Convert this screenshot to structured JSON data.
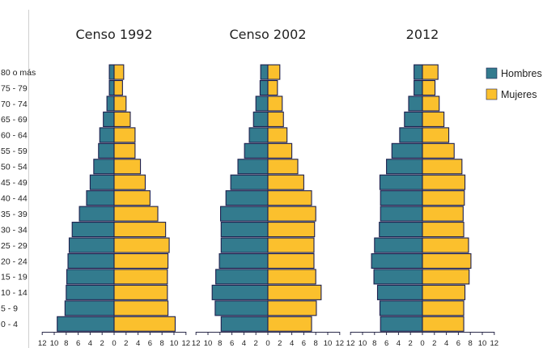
{
  "colors": {
    "hombres": "#337b8e",
    "mujeres": "#fbc02d",
    "outline": "#1d1f4e",
    "axis": "#2a2a4a",
    "leftline": "#d0d0d0"
  },
  "age_groups": [
    "0 - 4",
    "5 - 9",
    "10 - 14",
    "15 - 19",
    "20 - 24",
    "25 - 29",
    "30 - 34",
    "35 - 39",
    "40 - 44",
    "45 - 49",
    "50 - 54",
    "55 - 59",
    "60 - 64",
    "65 - 69",
    "70 - 74",
    "75 - 79",
    "80 o más"
  ],
  "legend": [
    {
      "label": "Hombres",
      "color": "#337b8e"
    },
    {
      "label": "Mujeres",
      "color": "#fbc02d"
    }
  ],
  "chart_data": [
    {
      "type": "bar",
      "title": "Censo 1992",
      "categories": [
        "0 - 4",
        "5 - 9",
        "10 - 14",
        "15 - 19",
        "20 - 24",
        "25 - 29",
        "30 - 34",
        "35 - 39",
        "40 - 44",
        "45 - 49",
        "50 - 54",
        "55 - 59",
        "60 - 64",
        "65 - 69",
        "70 - 74",
        "75 - 79",
        "80 o más"
      ],
      "series": [
        {
          "name": "Hombres",
          "values": [
            9.5,
            8.2,
            8.0,
            7.9,
            7.7,
            7.5,
            7.0,
            5.8,
            4.6,
            4.0,
            3.4,
            2.6,
            2.4,
            1.8,
            1.2,
            0.8,
            0.8
          ]
        },
        {
          "name": "Mujeres",
          "values": [
            10.2,
            9.0,
            8.9,
            8.9,
            9.0,
            9.2,
            8.6,
            7.3,
            6.0,
            5.2,
            4.4,
            3.5,
            3.5,
            2.7,
            2.0,
            1.4,
            1.6
          ]
        }
      ],
      "xlim": [
        -12,
        12
      ],
      "xticks": [
        "12",
        "10",
        "8",
        "6",
        "4",
        "2",
        "0",
        "2",
        "4",
        "6",
        "8",
        "10",
        "12"
      ]
    },
    {
      "type": "bar",
      "title": "Censo 2002",
      "categories": [
        "0 - 4",
        "5 - 9",
        "10 - 14",
        "15 - 19",
        "20 - 24",
        "25 - 29",
        "30 - 34",
        "35 - 39",
        "40 - 44",
        "45 - 49",
        "50 - 54",
        "55 - 59",
        "60 - 64",
        "65 - 69",
        "70 - 74",
        "75 - 79",
        "80 o más"
      ],
      "series": [
        {
          "name": "Hombres",
          "values": [
            7.8,
            8.8,
            9.3,
            8.7,
            8.1,
            7.8,
            7.8,
            7.9,
            7.0,
            6.2,
            5.0,
            3.9,
            3.1,
            2.4,
            2.0,
            1.3,
            1.2
          ]
        },
        {
          "name": "Mujeres",
          "values": [
            7.3,
            8.1,
            8.9,
            8.0,
            7.7,
            7.7,
            7.8,
            8.0,
            7.3,
            6.0,
            5.0,
            4.0,
            3.2,
            2.6,
            2.4,
            1.6,
            2.0
          ]
        }
      ],
      "xlim": [
        -12,
        12
      ],
      "xticks": [
        "12",
        "10",
        "8",
        "6",
        "4",
        "2",
        "0",
        "2",
        "4",
        "6",
        "8",
        "10",
        "12"
      ]
    },
    {
      "type": "bar",
      "title": "2012",
      "categories": [
        "0 - 4",
        "5 - 9",
        "10 - 14",
        "15 - 19",
        "20 - 24",
        "25 - 29",
        "30 - 34",
        "35 - 39",
        "40 - 44",
        "45 - 49",
        "50 - 54",
        "55 - 59",
        "60 - 64",
        "65 - 69",
        "70 - 74",
        "75 - 79",
        "80 o más"
      ],
      "series": [
        {
          "name": "Hombres",
          "values": [
            7.0,
            7.1,
            7.5,
            8.1,
            8.5,
            8.0,
            7.2,
            7.0,
            7.0,
            7.1,
            6.0,
            5.1,
            3.8,
            3.0,
            2.3,
            1.4,
            1.4
          ]
        },
        {
          "name": "Mujeres",
          "values": [
            6.9,
            6.9,
            7.1,
            7.8,
            8.1,
            7.7,
            6.9,
            6.8,
            7.0,
            7.1,
            6.6,
            5.3,
            4.4,
            3.6,
            2.8,
            2.1,
            2.6
          ]
        }
      ],
      "xlim": [
        -12,
        12
      ],
      "xticks": [
        "12",
        "10",
        "8",
        "6",
        "4",
        "2",
        "0",
        "2",
        "4",
        "6",
        "8",
        "10",
        "12"
      ]
    }
  ]
}
